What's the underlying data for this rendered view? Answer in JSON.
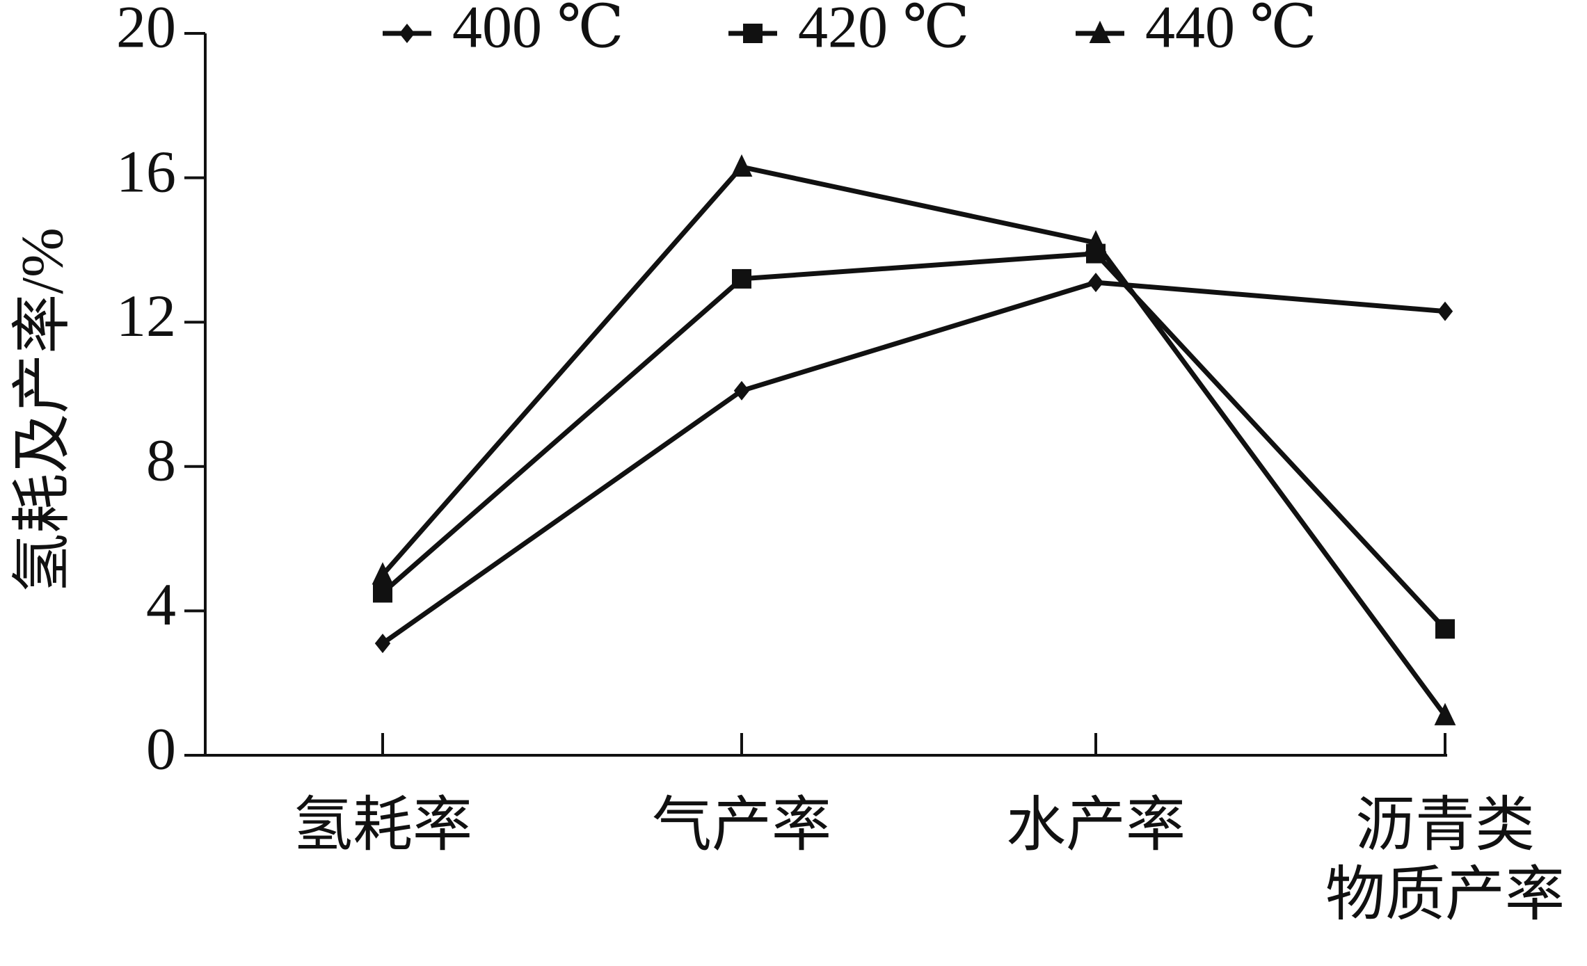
{
  "chart_data": {
    "type": "line",
    "y_label": "氢耗及产率/%",
    "categories": [
      "氢耗率",
      "气产率",
      "水产率",
      "沥青类\n物质产率"
    ],
    "series": [
      {
        "name": "400 ℃",
        "color": "#111111",
        "marker": "diamond",
        "values": [
          3.1,
          10.1,
          13.1,
          12.3
        ]
      },
      {
        "name": "420 ℃",
        "color": "#111111",
        "marker": "square",
        "values": [
          4.5,
          13.2,
          13.9,
          3.5
        ]
      },
      {
        "name": "440 ℃",
        "color": "#111111",
        "marker": "triangle",
        "values": [
          5.0,
          16.3,
          14.2,
          1.1
        ]
      }
    ],
    "ylim": [
      0,
      20
    ],
    "yticks": [
      0,
      4,
      8,
      12,
      16,
      20
    ],
    "grid": false,
    "legend": "top"
  }
}
